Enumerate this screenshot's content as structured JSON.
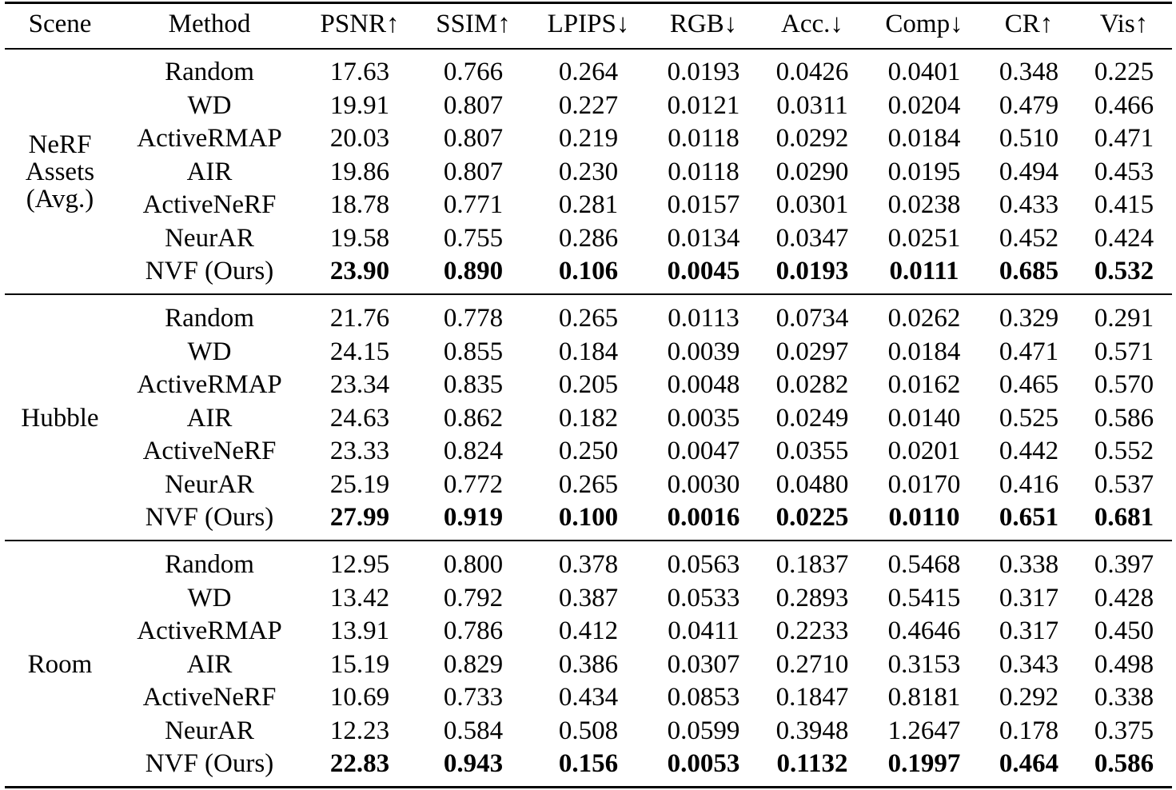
{
  "headers": [
    "Scene",
    "Method",
    "PSNR↑",
    "SSIM↑",
    "LPIPS↓",
    "RGB↓",
    "Acc.↓",
    "Comp↓",
    "CR↑",
    "Vis↑"
  ],
  "groups": [
    {
      "scene": [
        "NeRF",
        "Assets",
        "(Avg.)"
      ],
      "rows": [
        [
          "Random",
          "17.63",
          "0.766",
          "0.264",
          "0.0193",
          "0.0426",
          "0.0401",
          "0.348",
          "0.225"
        ],
        [
          "WD",
          "19.91",
          "0.807",
          "0.227",
          "0.0121",
          "0.0311",
          "0.0204",
          "0.479",
          "0.466"
        ],
        [
          "ActiveRMAP",
          "20.03",
          "0.807",
          "0.219",
          "0.0118",
          "0.0292",
          "0.0184",
          "0.510",
          "0.471"
        ],
        [
          "AIR",
          "19.86",
          "0.807",
          "0.230",
          "0.0118",
          "0.0290",
          "0.0195",
          "0.494",
          "0.453"
        ],
        [
          "ActiveNeRF",
          "18.78",
          "0.771",
          "0.281",
          "0.0157",
          "0.0301",
          "0.0238",
          "0.433",
          "0.415"
        ],
        [
          "NeurAR",
          "19.58",
          "0.755",
          "0.286",
          "0.0134",
          "0.0347",
          "0.0251",
          "0.452",
          "0.424"
        ],
        [
          "NVF (Ours)",
          "23.90",
          "0.890",
          "0.106",
          "0.0045",
          "0.0193",
          "0.0111",
          "0.685",
          "0.532"
        ]
      ]
    },
    {
      "scene": [
        "Hubble"
      ],
      "rows": [
        [
          "Random",
          "21.76",
          "0.778",
          "0.265",
          "0.0113",
          "0.0734",
          "0.0262",
          "0.329",
          "0.291"
        ],
        [
          "WD",
          "24.15",
          "0.855",
          "0.184",
          "0.0039",
          "0.0297",
          "0.0184",
          "0.471",
          "0.571"
        ],
        [
          "ActiveRMAP",
          "23.34",
          "0.835",
          "0.205",
          "0.0048",
          "0.0282",
          "0.0162",
          "0.465",
          "0.570"
        ],
        [
          "AIR",
          "24.63",
          "0.862",
          "0.182",
          "0.0035",
          "0.0249",
          "0.0140",
          "0.525",
          "0.586"
        ],
        [
          "ActiveNeRF",
          "23.33",
          "0.824",
          "0.250",
          "0.0047",
          "0.0355",
          "0.0201",
          "0.442",
          "0.552"
        ],
        [
          "NeurAR",
          "25.19",
          "0.772",
          "0.265",
          "0.0030",
          "0.0480",
          "0.0170",
          "0.416",
          "0.537"
        ],
        [
          "NVF (Ours)",
          "27.99",
          "0.919",
          "0.100",
          "0.0016",
          "0.0225",
          "0.0110",
          "0.651",
          "0.681"
        ]
      ]
    },
    {
      "scene": [
        "Room"
      ],
      "rows": [
        [
          "Random",
          "12.95",
          "0.800",
          "0.378",
          "0.0563",
          "0.1837",
          "0.5468",
          "0.338",
          "0.397"
        ],
        [
          "WD",
          "13.42",
          "0.792",
          "0.387",
          "0.0533",
          "0.2893",
          "0.5415",
          "0.317",
          "0.428"
        ],
        [
          "ActiveRMAP",
          "13.91",
          "0.786",
          "0.412",
          "0.0411",
          "0.2233",
          "0.4646",
          "0.317",
          "0.450"
        ],
        [
          "AIR",
          "15.19",
          "0.829",
          "0.386",
          "0.0307",
          "0.2710",
          "0.3153",
          "0.343",
          "0.498"
        ],
        [
          "ActiveNeRF",
          "10.69",
          "0.733",
          "0.434",
          "0.0853",
          "0.1847",
          "0.8181",
          "0.292",
          "0.338"
        ],
        [
          "NeurAR",
          "12.23",
          "0.584",
          "0.508",
          "0.0599",
          "0.3948",
          "1.2647",
          "0.178",
          "0.375"
        ],
        [
          "NVF (Ours)",
          "22.83",
          "0.943",
          "0.156",
          "0.0053",
          "0.1132",
          "0.1997",
          "0.464",
          "0.586"
        ]
      ]
    }
  ],
  "bold_method": "NVF (Ours)"
}
